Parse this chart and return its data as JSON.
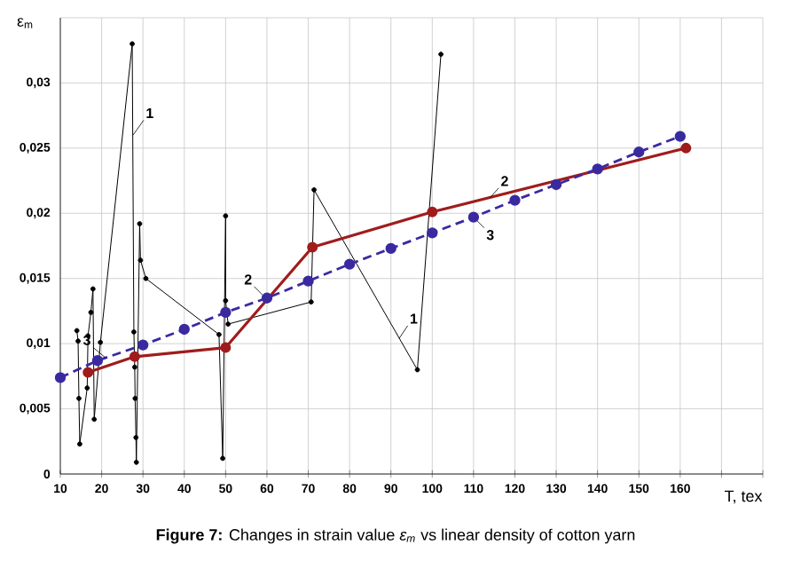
{
  "chart_data": {
    "type": "line",
    "title": "**Figure 7:** Changes in strain value *ε$_{m}$* vs linear density of cotton yarn",
    "xlabel": "T, tex",
    "ylabel": "ε$_{m}$",
    "xlim": [
      10,
      180
    ],
    "xticks": [
      10,
      20,
      30,
      40,
      50,
      60,
      70,
      80,
      90,
      100,
      110,
      120,
      130,
      140,
      150,
      160,
      {
        "value": 170,
        "label": null
      },
      {
        "value": 180,
        "label": null
      }
    ],
    "ylim": [
      0,
      0.035
    ],
    "yticks": [
      0,
      {
        "value": 0.005,
        "label": "0,005"
      },
      {
        "value": 0.01,
        "label": "0,01"
      },
      {
        "value": 0.015,
        "label": "0,015"
      },
      {
        "value": 0.02,
        "label": "0,02"
      },
      {
        "value": 0.025,
        "label": "0,025"
      },
      {
        "value": 0.03,
        "label": "0,03"
      },
      {
        "value": 0.035,
        "label": null
      }
    ],
    "grid": true,
    "marker": "circle",
    "series": [
      {
        "color": "#000000",
        "line_style": "solid",
        "x": [
          14.0,
          14.3,
          14.5,
          14.7,
          16.5,
          16.7,
          17.4,
          17.9,
          18.2,
          19.7,
          27.4,
          27.8,
          28.0,
          28.1,
          28.3,
          28.4,
          29.2,
          29.4,
          30.7,
          48.4,
          49.3,
          50.0,
          50.0,
          50.6,
          70.7,
          71.4,
          96.4,
          102.1
        ],
        "values": [
          0.011,
          0.0102,
          0.0058,
          0.0023,
          0.0066,
          0.0106,
          0.0124,
          0.0142,
          0.0042,
          0.0101,
          0.033,
          0.0109,
          0.0082,
          0.0058,
          0.0028,
          0.0009,
          0.0192,
          0.0164,
          0.015,
          0.0107,
          0.0012,
          0.0198,
          0.0133,
          0.0115,
          0.0132,
          0.0218,
          0.008,
          0.0322
        ]
      },
      {
        "color": "#a01c1c",
        "line_style": "solid",
        "x": [
          16.7,
          28,
          50,
          71,
          100,
          161.4
        ],
        "values": [
          0.0078,
          0.009,
          0.0097,
          0.0174,
          0.0201,
          0.025
        ]
      },
      {
        "color": "#3a2aa0",
        "line_style": "dashed",
        "x": [
          10,
          19,
          30,
          40,
          50,
          60,
          70,
          80,
          90,
          100,
          110,
          120,
          130,
          140,
          150,
          160
        ],
        "values": [
          0.0074,
          0.0087,
          0.0099,
          0.0111,
          0.0124,
          0.0135,
          0.0148,
          0.0161,
          0.0173,
          0.0185,
          0.0197,
          0.021,
          0.0222,
          0.0234,
          0.0247,
          0.0259
        ]
      }
    ],
    "annotations": [
      {
        "text": "1",
        "x": 27.6,
        "y": 0.026
      },
      {
        "text": "1",
        "x": 92,
        "y": 0.0104
      },
      {
        "text": "2",
        "x": 60,
        "y": 0.0134
      },
      {
        "text": "2",
        "x": 114,
        "y": 0.0212
      },
      {
        "text": "3",
        "x": 21,
        "y": 0.0089
      },
      {
        "text": "3",
        "x": 110,
        "y": 0.0197
      }
    ]
  }
}
